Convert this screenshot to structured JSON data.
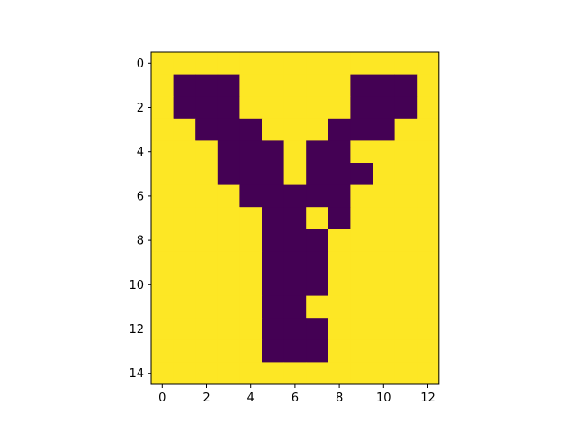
{
  "chart_data": {
    "type": "heatmap",
    "title": "",
    "xlabel": "",
    "ylabel": "",
    "colormap": "viridis",
    "colors": {
      "low": "#440154",
      "high": "#fde725"
    },
    "xlim": [
      -0.5,
      12.5
    ],
    "ylim": [
      14.5,
      -0.5
    ],
    "xticks": [
      0,
      2,
      4,
      6,
      8,
      10,
      12
    ],
    "yticks": [
      0,
      2,
      4,
      6,
      8,
      10,
      12,
      14
    ],
    "xtick_labels": [
      "0",
      "2",
      "4",
      "6",
      "8",
      "10",
      "12"
    ],
    "ytick_labels": [
      "0",
      "2",
      "4",
      "6",
      "8",
      "10",
      "12",
      "14"
    ],
    "grid": false,
    "values": [
      [
        1,
        1,
        1,
        1,
        1,
        1,
        1,
        1,
        1,
        1,
        1,
        1,
        1
      ],
      [
        1,
        0,
        0,
        0,
        1,
        1,
        1,
        1,
        1,
        0,
        0,
        0,
        1
      ],
      [
        1,
        0,
        0,
        0,
        1,
        1,
        1,
        1,
        1,
        0,
        0,
        0,
        1
      ],
      [
        1,
        1,
        0,
        0,
        0,
        1,
        1,
        1,
        0,
        0,
        0,
        1,
        1
      ],
      [
        1,
        1,
        1,
        0,
        0,
        0,
        1,
        0,
        0,
        1,
        1,
        1,
        1
      ],
      [
        1,
        1,
        1,
        0,
        0,
        0,
        1,
        0,
        0,
        0,
        1,
        1,
        1
      ],
      [
        1,
        1,
        1,
        1,
        0,
        0,
        0,
        0,
        0,
        1,
        1,
        1,
        1
      ],
      [
        1,
        1,
        1,
        1,
        1,
        0,
        0,
        1,
        0,
        1,
        1,
        1,
        1
      ],
      [
        1,
        1,
        1,
        1,
        1,
        0,
        0,
        0,
        1,
        1,
        1,
        1,
        1
      ],
      [
        1,
        1,
        1,
        1,
        1,
        0,
        0,
        0,
        1,
        1,
        1,
        1,
        1
      ],
      [
        1,
        1,
        1,
        1,
        1,
        0,
        0,
        0,
        1,
        1,
        1,
        1,
        1
      ],
      [
        1,
        1,
        1,
        1,
        1,
        0,
        0,
        1,
        1,
        1,
        1,
        1,
        1
      ],
      [
        1,
        1,
        1,
        1,
        1,
        0,
        0,
        0,
        1,
        1,
        1,
        1,
        1
      ],
      [
        1,
        1,
        1,
        1,
        1,
        0,
        0,
        0,
        1,
        1,
        1,
        1,
        1
      ],
      [
        1,
        1,
        1,
        1,
        1,
        1,
        1,
        1,
        1,
        1,
        1,
        1,
        1
      ]
    ]
  }
}
